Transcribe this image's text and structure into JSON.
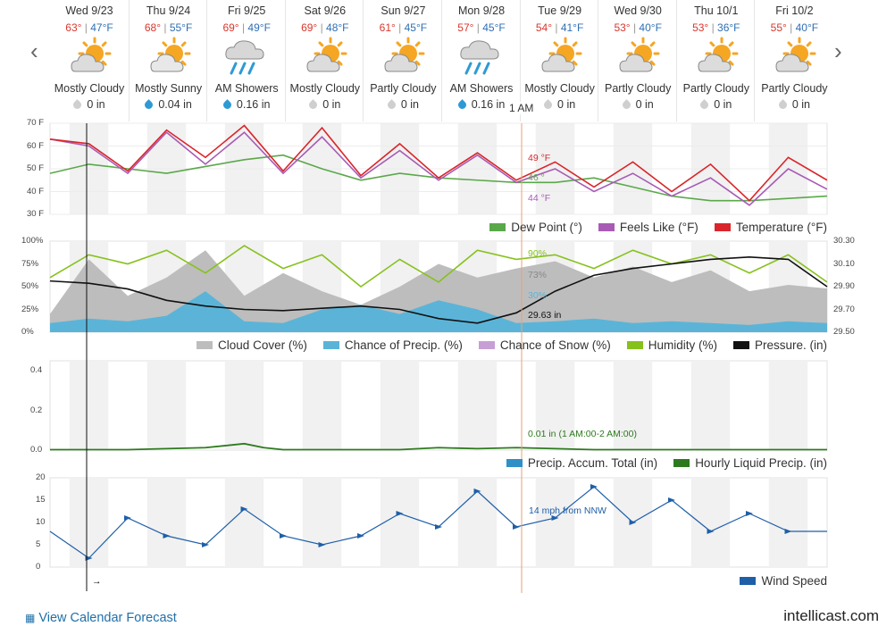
{
  "nav": {
    "prev": "‹",
    "next": "›"
  },
  "days": [
    {
      "date": "Wed 9/23",
      "hi": "63°",
      "lo": "47°F",
      "cond": "Mostly Cloudy",
      "icon": "sun-cloud-icon",
      "precip": "0 in",
      "wet": false
    },
    {
      "date": "Thu 9/24",
      "hi": "68°",
      "lo": "55°F",
      "cond": "Mostly Sunny",
      "icon": "sun-cloud-icon",
      "precip": "0.04 in",
      "wet": true
    },
    {
      "date": "Fri 9/25",
      "hi": "69°",
      "lo": "49°F",
      "cond": "AM Showers",
      "icon": "rain-cloud-icon",
      "precip": "0.16 in",
      "wet": true
    },
    {
      "date": "Sat 9/26",
      "hi": "69°",
      "lo": "48°F",
      "cond": "Mostly Cloudy",
      "icon": "sun-cloud-icon",
      "precip": "0 in",
      "wet": false
    },
    {
      "date": "Sun 9/27",
      "hi": "61°",
      "lo": "45°F",
      "cond": "Partly Cloudy",
      "icon": "sun-cloud-icon",
      "precip": "0 in",
      "wet": false
    },
    {
      "date": "Mon 9/28",
      "hi": "57°",
      "lo": "45°F",
      "cond": "AM Showers",
      "icon": "rain-cloud-icon",
      "precip": "0.16 in",
      "wet": true
    },
    {
      "date": "Tue 9/29",
      "hi": "54°",
      "lo": "41°F",
      "cond": "Mostly Cloudy",
      "icon": "sun-cloud-icon",
      "precip": "0 in",
      "wet": false
    },
    {
      "date": "Wed 9/30",
      "hi": "53°",
      "lo": "40°F",
      "cond": "Partly Cloudy",
      "icon": "sun-cloud-icon",
      "precip": "0 in",
      "wet": false
    },
    {
      "date": "Thu 10/1",
      "hi": "53°",
      "lo": "36°F",
      "cond": "Partly Cloudy",
      "icon": "sun-cloud-icon",
      "precip": "0 in",
      "wet": false
    },
    {
      "date": "Fri 10/2",
      "hi": "55°",
      "lo": "40°F",
      "cond": "Partly Cloudy",
      "icon": "sun-cloud-icon",
      "precip": "0 in",
      "wet": false
    }
  ],
  "hover_time": "1 AM",
  "colors": {
    "temperature": "#d9262b",
    "feels_like": "#a85bb5",
    "dew_point": "#5aa84a",
    "cloud": "#bdbdbd",
    "precip_chance": "#5bb4d8",
    "snow": "#c79fd6",
    "humidity": "#86c11c",
    "pressure": "#111111",
    "accum": "#2e90c7",
    "liquid": "#2d7a1e",
    "wind": "#1f5fa8"
  },
  "chart_data": [
    {
      "type": "line",
      "title": "",
      "ylabel": "",
      "yticks": [
        "70 F",
        "60 F",
        "50 F",
        "40 F",
        "30 F"
      ],
      "ylim": [
        30,
        70
      ],
      "x_hours": [
        0,
        12,
        24,
        36,
        48,
        60,
        72,
        84,
        96,
        108,
        120,
        132,
        144,
        156,
        168,
        180,
        192,
        204,
        216,
        228,
        240
      ],
      "series": [
        {
          "name": "Dew Point (°)",
          "values": [
            48,
            52,
            50,
            48,
            51,
            54,
            56,
            50,
            45,
            48,
            46,
            45,
            44,
            44,
            46,
            42,
            38,
            36,
            36,
            37,
            38
          ]
        },
        {
          "name": "Feels Like (°F)",
          "values": [
            63,
            60,
            48,
            66,
            52,
            66,
            48,
            64,
            46,
            58,
            45,
            56,
            44,
            50,
            40,
            48,
            38,
            46,
            34,
            50,
            41
          ]
        },
        {
          "name": "Temperature (°F)",
          "values": [
            63,
            61,
            49,
            67,
            55,
            69,
            49,
            68,
            47,
            61,
            46,
            57,
            45,
            53,
            42,
            53,
            40,
            52,
            36,
            55,
            45
          ]
        }
      ],
      "readout": {
        "temperature": "49 °F",
        "dew_point": "46 °",
        "feels_like": "44 °F"
      }
    },
    {
      "type": "area",
      "title": "",
      "yticks_left": [
        "100%",
        "75%",
        "50%",
        "25%",
        "0%"
      ],
      "yticks_right": [
        "30.30",
        "30.10",
        "29.90",
        "29.70",
        "29.50"
      ],
      "ylim": [
        0,
        100
      ],
      "ylim_right": [
        29.5,
        30.3
      ],
      "x_hours": [
        0,
        12,
        24,
        36,
        48,
        60,
        72,
        84,
        96,
        108,
        120,
        132,
        144,
        156,
        168,
        180,
        192,
        204,
        216,
        228,
        240
      ],
      "series": [
        {
          "name": "Cloud Cover (%)",
          "values": [
            20,
            80,
            40,
            60,
            90,
            40,
            65,
            45,
            30,
            50,
            75,
            60,
            70,
            78,
            60,
            72,
            55,
            68,
            45,
            52,
            48
          ]
        },
        {
          "name": "Chance of Precip. (%)",
          "values": [
            10,
            15,
            12,
            18,
            45,
            12,
            10,
            25,
            30,
            20,
            35,
            25,
            10,
            12,
            15,
            10,
            12,
            10,
            8,
            12,
            10
          ]
        },
        {
          "name": "Chance of Snow (%)",
          "values": [
            0,
            0,
            0,
            0,
            0,
            0,
            0,
            0,
            0,
            0,
            0,
            0,
            0,
            0,
            0,
            0,
            0,
            0,
            0,
            0,
            0
          ]
        },
        {
          "name": "Humidity (%)",
          "values": [
            60,
            85,
            75,
            90,
            65,
            95,
            70,
            85,
            50,
            80,
            55,
            90,
            80,
            85,
            70,
            90,
            75,
            85,
            65,
            85,
            55
          ]
        },
        {
          "name": "Pressure. (in)",
          "values": [
            29.95,
            29.93,
            29.88,
            29.78,
            29.73,
            29.7,
            29.69,
            29.71,
            29.73,
            29.7,
            29.62,
            29.58,
            29.67,
            29.86,
            30.0,
            30.06,
            30.1,
            30.14,
            30.16,
            30.14,
            29.9
          ]
        }
      ],
      "readout": {
        "humidity": "90%",
        "cloud": "73%",
        "precip": "30%",
        "pressure": "29.63 in"
      }
    },
    {
      "type": "line",
      "title": "",
      "yticks": [
        "0.4",
        "0.2",
        "0.0"
      ],
      "ylim": [
        0,
        0.45
      ],
      "x_hours": [
        0,
        24,
        48,
        54,
        60,
        66,
        72,
        96,
        108,
        120,
        132,
        144,
        168,
        192,
        216,
        240
      ],
      "series": [
        {
          "name": "Precip. Accum. Total (in)",
          "values": []
        },
        {
          "name": "Hourly Liquid Precip. (in)",
          "values": [
            0,
            0,
            0.01,
            0.02,
            0.03,
            0.01,
            0,
            0,
            0,
            0.01,
            0.005,
            0.01,
            0,
            0,
            0,
            0
          ]
        }
      ],
      "readout": {
        "liquid": "0.01 in (1 AM:00-2 AM:00)"
      }
    },
    {
      "type": "line",
      "title": "",
      "yticks": [
        "20",
        "15",
        "10",
        "5",
        "0"
      ],
      "ylim": [
        0,
        20
      ],
      "x_hours": [
        0,
        12,
        24,
        36,
        48,
        60,
        72,
        84,
        96,
        108,
        120,
        132,
        144,
        156,
        168,
        180,
        192,
        204,
        216,
        228,
        240
      ],
      "series": [
        {
          "name": "Wind Speed",
          "values": [
            8,
            2,
            11,
            7,
            5,
            13,
            7,
            5,
            7,
            12,
            9,
            17,
            9,
            11,
            18,
            10,
            15,
            8,
            12,
            8,
            8
          ]
        }
      ],
      "readout": {
        "wind": "14 mph from NNW"
      }
    }
  ],
  "legends": {
    "temp": [
      "Dew Point (°)",
      "Feels Like (°F)",
      "Temperature (°F)"
    ],
    "cloud": [
      "Cloud Cover (%)",
      "Chance of Precip. (%)",
      "Chance of Snow (%)",
      "Humidity (%)",
      "Pressure. (in)"
    ],
    "precip": [
      "Precip. Accum. Total (in)",
      "Hourly Liquid Precip. (in)"
    ],
    "wind": [
      "Wind Speed"
    ]
  },
  "arrow": "→",
  "footer": {
    "calendar_link": "View Calendar Forecast",
    "brand": "intellicast.com"
  }
}
